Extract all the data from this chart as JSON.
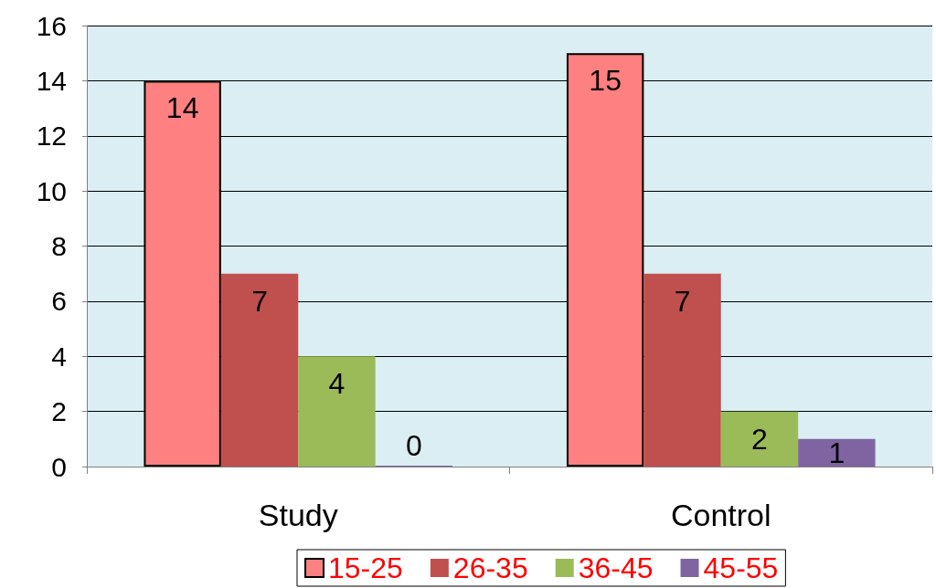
{
  "chart_data": {
    "type": "bar",
    "categories": [
      "Study",
      "Control"
    ],
    "series": [
      {
        "name": "15-25",
        "color": "#ff8080",
        "values": [
          14,
          15
        ]
      },
      {
        "name": "26-35",
        "color": "#c0504d",
        "values": [
          7,
          7
        ]
      },
      {
        "name": "36-45",
        "color": "#9bbb59",
        "values": [
          4,
          2
        ]
      },
      {
        "name": "45-55",
        "color": "#8064a2",
        "values": [
          0,
          1
        ]
      }
    ],
    "ylim": [
      0,
      16
    ],
    "yticks": [
      0,
      2,
      4,
      6,
      8,
      10,
      12,
      14,
      16
    ],
    "grid": "y",
    "legend": "bottom",
    "data_labels": true
  }
}
